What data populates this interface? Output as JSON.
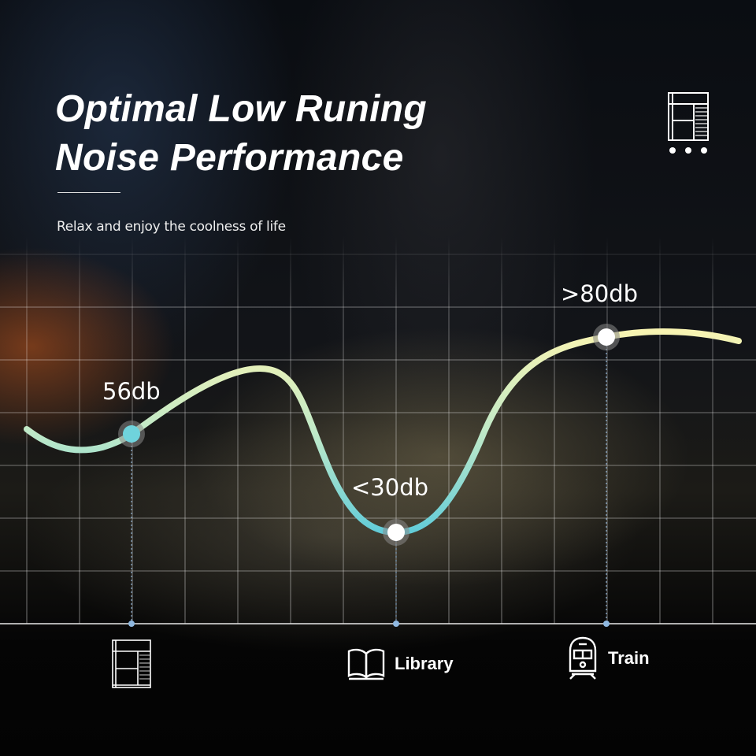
{
  "header": {
    "title_line1": "Optimal Low Runing",
    "title_line2": "Noise Performance",
    "subtitle": "Relax and enjoy the coolness of life"
  },
  "brand": {
    "icon": "air-conditioner-logo-icon"
  },
  "points": [
    {
      "label": "56db",
      "value_db": 56,
      "category": "",
      "icon": "air-conditioner-icon"
    },
    {
      "label": "<30db",
      "value_db": 30,
      "category": "Library",
      "icon": "book-icon"
    },
    {
      "label": ">80db",
      "value_db": 80,
      "category": "Train",
      "icon": "train-icon"
    }
  ],
  "colors": {
    "curve_start": "#6fd3dc",
    "curve_end": "#f7f3b0",
    "marker_axis": "#8fb8e0"
  }
}
